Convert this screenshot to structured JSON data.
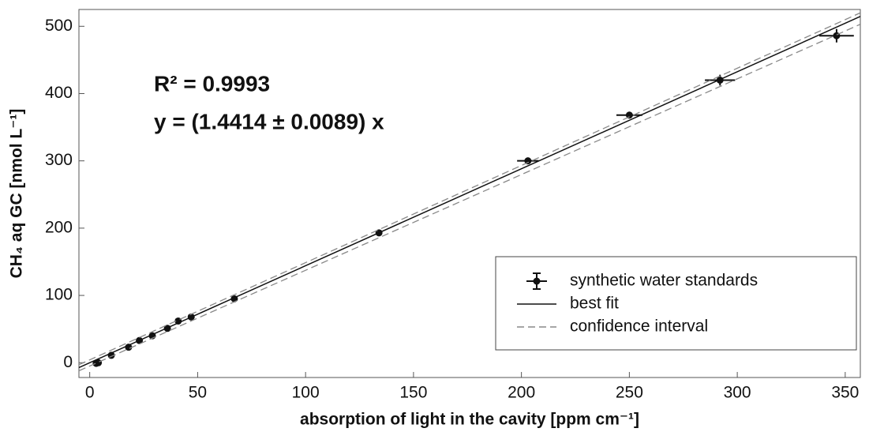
{
  "chart_data": {
    "type": "scatter",
    "annotations": [
      "R² = 0.9993",
      "y = (1.4414 ± 0.0089) x"
    ],
    "xlabel": "absorption of light in the cavity [ppm cm⁻¹]",
    "ylabel": "CH₄ aq GC [nmol L⁻¹]",
    "xlim": [
      -5,
      357
    ],
    "ylim": [
      -22,
      525
    ],
    "xticks": [
      0,
      50,
      100,
      150,
      200,
      250,
      300,
      350
    ],
    "yticks": [
      0,
      100,
      200,
      300,
      400,
      500
    ],
    "legend": "lower right",
    "series": [
      {
        "name": "synthetic water standards",
        "color": "#111111",
        "kind": "points",
        "x": [
          3,
          4,
          10,
          18,
          23,
          29,
          36,
          41,
          47,
          67,
          134,
          203,
          250,
          292,
          346
        ],
        "values": [
          -1,
          0,
          11,
          23,
          33,
          40,
          51,
          62,
          68,
          95,
          193,
          300,
          368,
          420,
          486
        ],
        "xerr": [
          1,
          1,
          1,
          1,
          1,
          1,
          1,
          1,
          1,
          1,
          1,
          5,
          6,
          7,
          8
        ],
        "yerr": [
          2,
          2,
          2,
          2,
          2,
          2,
          2,
          2,
          2,
          5,
          2,
          2,
          3,
          8,
          10
        ]
      },
      {
        "name": "best fit",
        "color": "#111111",
        "kind": "line",
        "x": [
          -5,
          357
        ],
        "values": [
          -7.2,
          514.6
        ]
      },
      {
        "name": "confidence interval",
        "color": "#888888",
        "kind": "dashed",
        "x": [
          -5,
          357
        ],
        "values": [
          -3,
          520
        ],
        "lower": [
          -12,
          503
        ]
      }
    ]
  }
}
